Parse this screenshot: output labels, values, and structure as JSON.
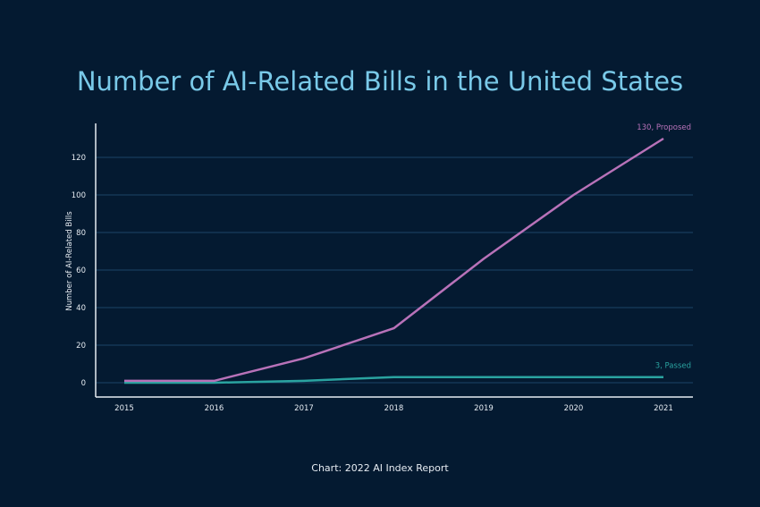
{
  "chart_data": {
    "type": "line",
    "title": "Number of AI-Related Bills in the United States",
    "ylabel": "Number of AI-Related Bills",
    "xlabel": "",
    "x": [
      2015,
      2016,
      2017,
      2018,
      2019,
      2020,
      2021
    ],
    "ylim": [
      -7,
      135
    ],
    "yticks": [
      0,
      20,
      40,
      60,
      80,
      100,
      120
    ],
    "grid": true,
    "series": [
      {
        "name": "Proposed",
        "values": [
          1,
          1,
          13,
          29,
          66,
          100,
          130
        ],
        "color": "#b872b9",
        "end_label": "130, Proposed"
      },
      {
        "name": "Passed",
        "values": [
          0,
          0,
          1,
          3,
          3,
          3,
          3
        ],
        "color": "#2aa3a0",
        "end_label": "3, Passed"
      }
    ]
  },
  "source": "Chart: 2022 AI Index Report",
  "colors": {
    "background": "#041a31",
    "title": "#79c9e8",
    "grid": "#1d4466",
    "axis": "#e6ecf2"
  }
}
